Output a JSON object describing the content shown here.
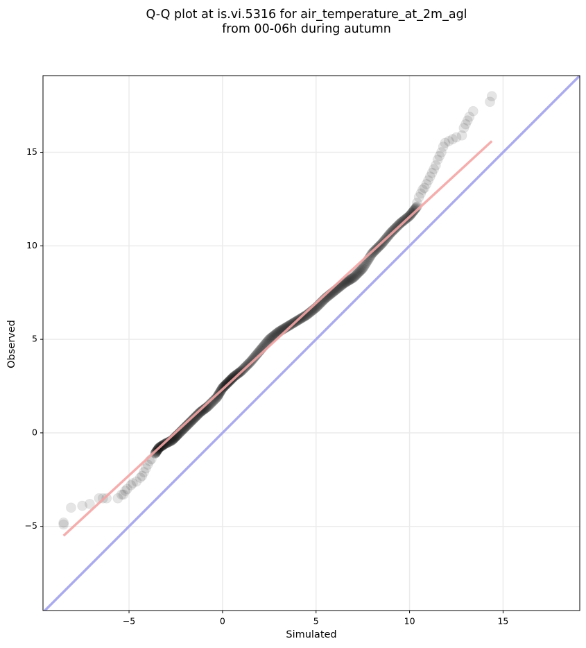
{
  "chart_data": {
    "type": "scatter",
    "title_lines": [
      "Q-Q plot at is.vi.5316 for air_temperature_at_2m_agl",
      "from 00-06h during autumn"
    ],
    "xlabel": "Simulated",
    "ylabel": "Observed",
    "xlim": [
      -9.6,
      19.1
    ],
    "ylim": [
      -9.5,
      19.1
    ],
    "xticks": [
      -5,
      0,
      5,
      10,
      15
    ],
    "xtick_labels": [
      "−5",
      "0",
      "5",
      "10",
      "15"
    ],
    "yticks": [
      -5,
      0,
      5,
      10,
      15
    ],
    "ytick_labels": [
      "−5",
      "0",
      "5",
      "10",
      "15"
    ],
    "grid": true,
    "identity_line": {
      "from": [
        -9.6,
        -9.6
      ],
      "to": [
        19.1,
        19.1
      ],
      "color": "#aaaaee"
    },
    "fit_line": {
      "from": [
        -8.5,
        -5.5
      ],
      "to": [
        14.4,
        15.6
      ],
      "color": "#f4a5a5"
    },
    "scatter_color": "#000000",
    "scatter_opacity": 0.1,
    "tail_points": [
      [
        -8.5,
        -4.9
      ],
      [
        -8.5,
        -4.8
      ],
      [
        -8.1,
        -4.0
      ],
      [
        -7.5,
        -3.9
      ],
      [
        -7.1,
        -3.8
      ],
      [
        -6.6,
        -3.5
      ],
      [
        -6.4,
        -3.5
      ],
      [
        -6.2,
        -3.5
      ],
      [
        -5.6,
        -3.5
      ],
      [
        -5.4,
        -3.3
      ],
      [
        -5.3,
        -3.3
      ],
      [
        -5.2,
        -3.1
      ],
      [
        -5.1,
        -3.0
      ],
      [
        -4.9,
        -2.8
      ],
      [
        -4.8,
        -2.7
      ],
      [
        -4.6,
        -2.6
      ],
      [
        -4.4,
        -2.4
      ],
      [
        -4.3,
        -2.3
      ],
      [
        -4.2,
        -2.1
      ],
      [
        -4.1,
        -1.9
      ],
      [
        -4.0,
        -1.7
      ],
      [
        -3.9,
        -1.5
      ],
      [
        -3.8,
        -1.4
      ],
      [
        -3.6,
        -1.1
      ],
      [
        10.4,
        12.3
      ],
      [
        10.5,
        12.6
      ],
      [
        10.6,
        12.8
      ],
      [
        10.7,
        13.0
      ],
      [
        10.8,
        13.1
      ],
      [
        10.9,
        13.3
      ],
      [
        11.0,
        13.5
      ],
      [
        11.1,
        13.7
      ],
      [
        11.2,
        13.9
      ],
      [
        11.3,
        14.1
      ],
      [
        11.4,
        14.3
      ],
      [
        11.5,
        14.6
      ],
      [
        11.6,
        14.8
      ],
      [
        11.7,
        15.0
      ],
      [
        11.8,
        15.3
      ],
      [
        11.9,
        15.5
      ],
      [
        12.1,
        15.6
      ],
      [
        12.3,
        15.7
      ],
      [
        12.5,
        15.8
      ],
      [
        12.8,
        15.9
      ],
      [
        12.9,
        16.3
      ],
      [
        13.0,
        16.5
      ],
      [
        13.1,
        16.7
      ],
      [
        13.2,
        16.9
      ],
      [
        13.4,
        17.2
      ],
      [
        14.3,
        17.7
      ],
      [
        14.4,
        18.0
      ]
    ],
    "body_curve": [
      [
        -3.6,
        -1.1
      ],
      [
        -3.4,
        -0.8
      ],
      [
        -3.1,
        -0.6
      ],
      [
        -2.7,
        -0.4
      ],
      [
        -2.4,
        -0.1
      ],
      [
        -2.0,
        0.3
      ],
      [
        -1.6,
        0.7
      ],
      [
        -1.2,
        1.1
      ],
      [
        -0.8,
        1.4
      ],
      [
        -0.3,
        1.9
      ],
      [
        0.0,
        2.4
      ],
      [
        0.3,
        2.7
      ],
      [
        0.6,
        3.0
      ],
      [
        1.0,
        3.3
      ],
      [
        1.5,
        3.8
      ],
      [
        2.0,
        4.4
      ],
      [
        2.5,
        5.0
      ],
      [
        3.0,
        5.4
      ],
      [
        3.5,
        5.7
      ],
      [
        4.0,
        6.0
      ],
      [
        4.5,
        6.3
      ],
      [
        5.0,
        6.7
      ],
      [
        5.5,
        7.2
      ],
      [
        6.0,
        7.6
      ],
      [
        6.5,
        8.0
      ],
      [
        7.0,
        8.3
      ],
      [
        7.5,
        8.8
      ],
      [
        8.0,
        9.6
      ],
      [
        8.5,
        10.1
      ],
      [
        9.0,
        10.7
      ],
      [
        9.5,
        11.2
      ],
      [
        10.0,
        11.6
      ],
      [
        10.4,
        12.1
      ]
    ],
    "body_points_per_segment": 14
  }
}
